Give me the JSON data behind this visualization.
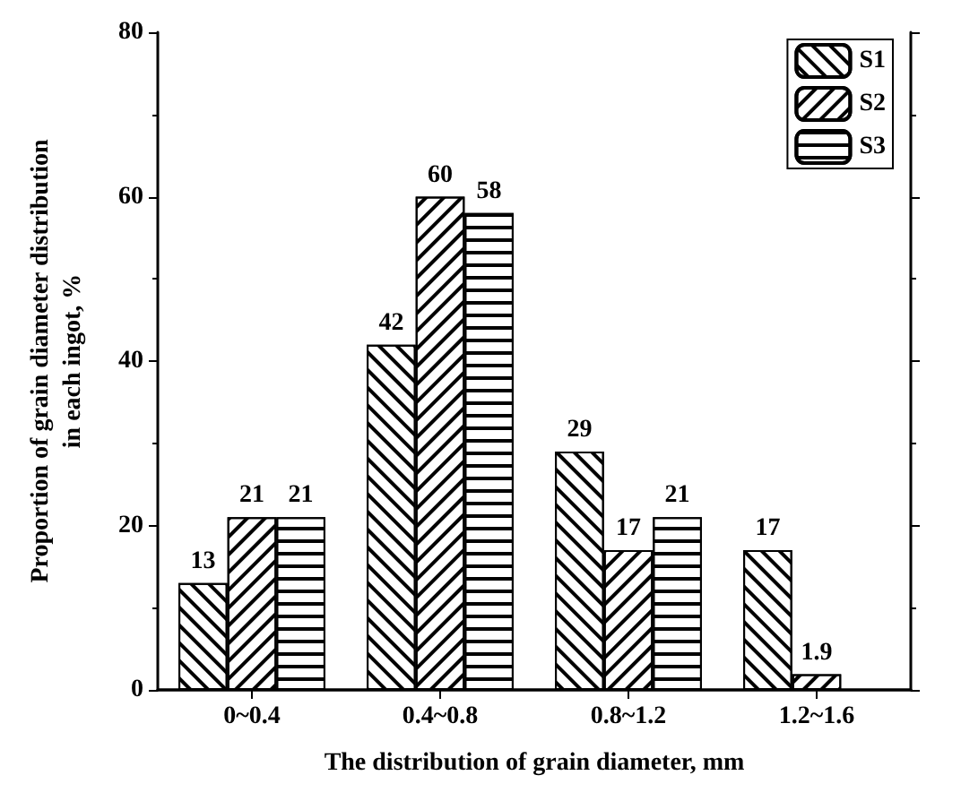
{
  "chart_data": {
    "type": "bar",
    "xlabel": "The distribution of grain diameter, mm",
    "ylabel": "Proportion of grain diameter distribution\nin each ingot, %",
    "categories": [
      "0~0.4",
      "0.4~0.8",
      "0.8~1.2",
      "1.2~1.6"
    ],
    "series": [
      {
        "name": "S1",
        "color": "#000000",
        "values": [
          13,
          42,
          29,
          17
        ]
      },
      {
        "name": "S2",
        "color": "#000000",
        "values": [
          21,
          60,
          17,
          1.9
        ]
      },
      {
        "name": "S3",
        "color": "#000000",
        "values": [
          21,
          58,
          21,
          null
        ]
      }
    ],
    "ylim": [
      0,
      80
    ],
    "yticks": [
      0,
      20,
      40,
      60,
      80
    ],
    "data_labels": true,
    "legend": "top right",
    "grid": false
  }
}
